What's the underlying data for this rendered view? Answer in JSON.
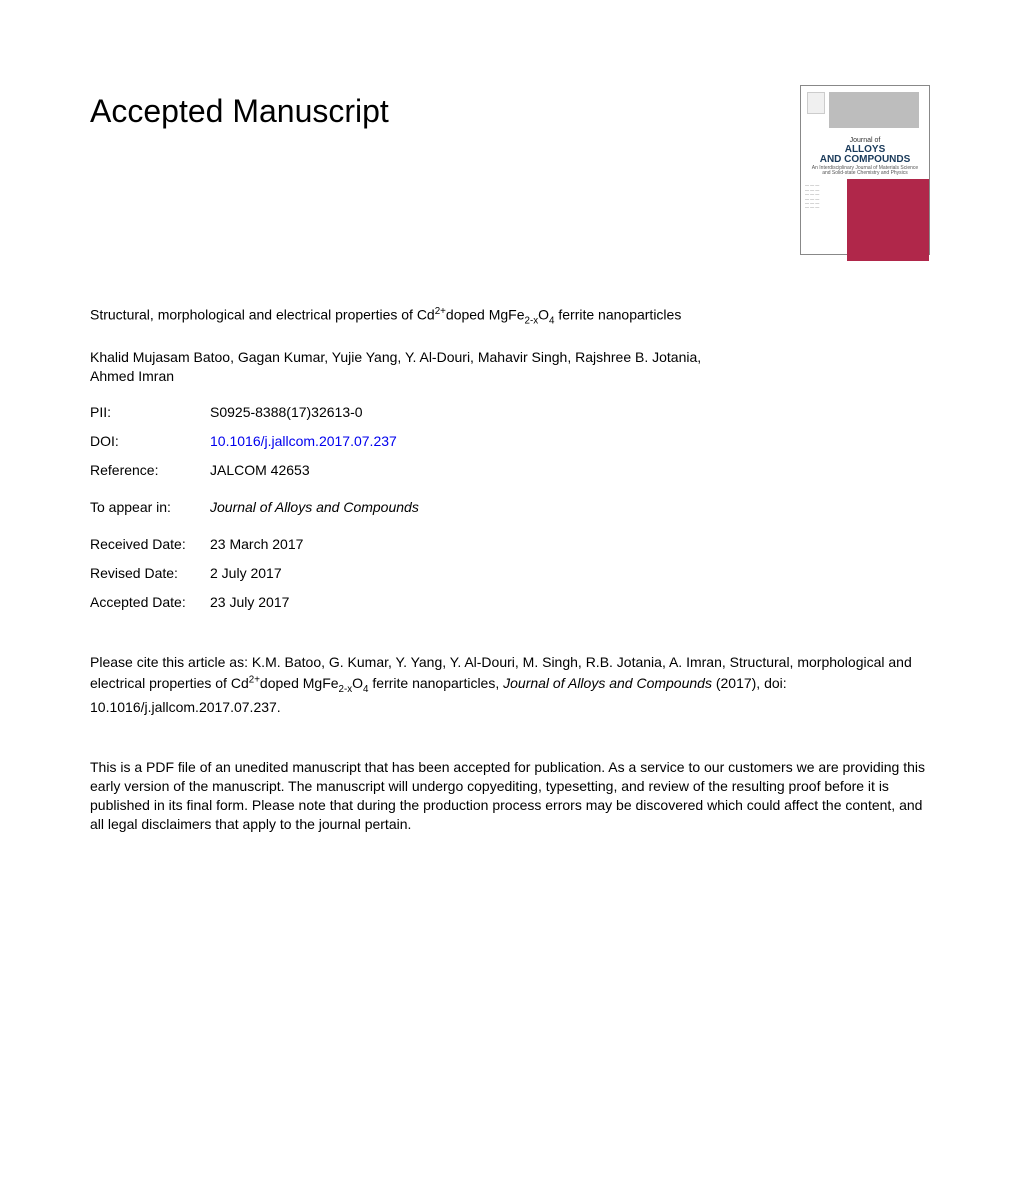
{
  "heading": "Accepted Manuscript",
  "article": {
    "title_prefix": "Structural, morphological and electrical properties of Cd",
    "title_sup1": "2+",
    "title_mid1": "doped MgFe",
    "title_sub1": "2-x",
    "title_mid2": "O",
    "title_sub2": "4",
    "title_suffix": " ferrite nanoparticles"
  },
  "authors": "Khalid Mujasam Batoo, Gagan Kumar, Yujie Yang, Y. Al-Douri, Mahavir Singh, Rajshree B. Jotania, Ahmed Imran",
  "meta": {
    "pii_label": "PII:",
    "pii_value": "S0925-8388(17)32613-0",
    "doi_label": "DOI:",
    "doi_value": "10.1016/j.jallcom.2017.07.237",
    "ref_label": "Reference:",
    "ref_value": "JALCOM 42653",
    "appear_label": "To appear in:",
    "appear_value": "Journal of Alloys and Compounds",
    "received_label": "Received Date:",
    "received_value": "23 March 2017",
    "revised_label": "Revised Date:",
    "revised_value": "2 July 2017",
    "accepted_label": "Accepted Date:",
    "accepted_value": "23 July 2017"
  },
  "citation": {
    "prefix": "Please cite this article as: K.M. Batoo, G. Kumar, Y. Yang, Y. Al-Douri, M. Singh, R.B. Jotania, A. Imran, Structural, morphological and electrical properties of Cd",
    "sup1": "2+",
    "mid1": "doped MgFe",
    "sub1": "2-x",
    "mid2": "O",
    "sub2": "4",
    "mid3": " ferrite nanoparticles, ",
    "journal": "Journal of Alloys and Compounds",
    "suffix": " (2017), doi: 10.1016/j.jallcom.2017.07.237."
  },
  "disclaimer": "This is a PDF file of an unedited manuscript that has been accepted for publication. As a service to our customers we are providing this early version of the manuscript. The manuscript will undergo copyediting, typesetting, and review of the resulting proof before it is published in its final form. Please note that during the production process errors may be discovered which could affect the content, and all legal disclaimers that apply to the journal pertain.",
  "cover": {
    "journal_of": "Journal of",
    "title_line1": "ALLOYS",
    "title_line2": "AND COMPOUNDS",
    "subtitle": "An Interdisciplinary Journal of Materials Science and Solid-state Chemistry and Physics",
    "colors": {
      "accent": "#b0274a",
      "title_color": "#1a3a5a",
      "grey_block": "#bdbdbd",
      "border": "#888888"
    }
  },
  "colors": {
    "text": "#000000",
    "link": "#0000ee",
    "background": "#ffffff"
  },
  "typography": {
    "heading_fontsize": 32,
    "body_fontsize": 14,
    "font_family": "Arial"
  }
}
